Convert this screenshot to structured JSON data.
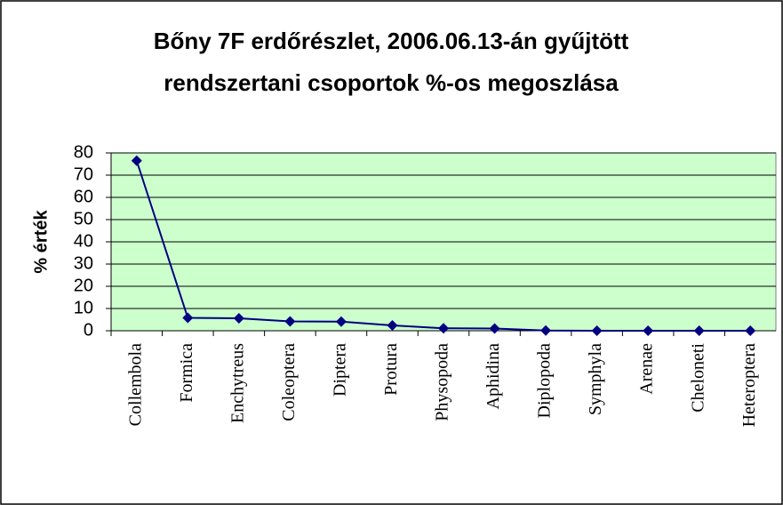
{
  "chart_data": {
    "type": "line",
    "title": [
      "Bőny 7F erdőrészlet, 2006.06.13-án gyűjtött",
      "rendszertani csoportok %-os megoszlása"
    ],
    "y_label": "% érték",
    "categories": [
      "Collembola",
      "Formica",
      "Enchytreus",
      "Coleoptera",
      "Diptera",
      "Protura",
      "Physopoda",
      "Aphidina",
      "Diplopoda",
      "Symphyla",
      "Arenae",
      "Cheloneti",
      "Heteroptera"
    ],
    "values": [
      76.5,
      5.8,
      5.6,
      4.2,
      4.1,
      2.4,
      1.1,
      1,
      0.1,
      0,
      0,
      0,
      0
    ],
    "color": "#000080",
    "ylim": [
      0,
      80
    ],
    "yticks": [
      0,
      10,
      20,
      30,
      40,
      50,
      60,
      70,
      80
    ],
    "grid": true,
    "plot_background": "#ccffcc"
  }
}
